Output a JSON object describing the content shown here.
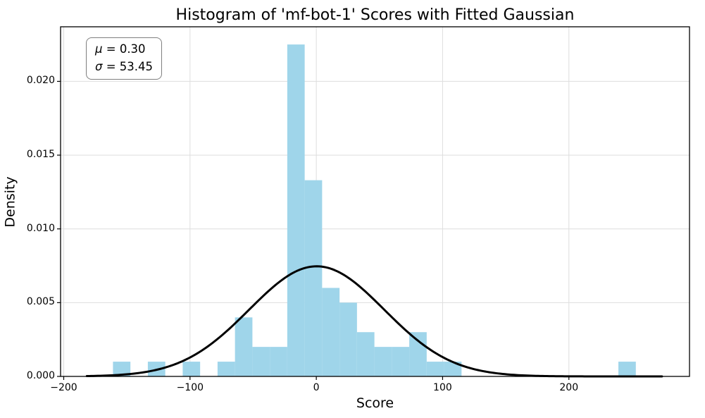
{
  "figure": {
    "title": "Histogram of 'mf-bot-1' Scores with Fitted Gaussian",
    "xlabel": "Score",
    "ylabel": "Density"
  },
  "annotation": {
    "lines": [
      {
        "symbol": "μ",
        "rest": " = 0.30"
      },
      {
        "symbol": "σ",
        "rest": " = 53.45"
      }
    ]
  },
  "chart_data": {
    "type": "bar",
    "subtype": "histogram_with_gaussian_fit",
    "title": "Histogram of 'mf-bot-1' Scores with Fitted Gaussian",
    "xlabel": "Score",
    "ylabel": "Density",
    "xlim": [
      -202.5,
      295.5
    ],
    "ylim": [
      0,
      0.0237
    ],
    "grid": true,
    "xticks": {
      "values": [
        -200,
        -100,
        0,
        100,
        200
      ],
      "labels": [
        "−200",
        "−100",
        "0",
        "100",
        "200"
      ]
    },
    "yticks": {
      "values": [
        0,
        0.005,
        0.01,
        0.015,
        0.02
      ],
      "labels": [
        "0.000",
        "0.005",
        "0.010",
        "0.015",
        "0.020"
      ]
    },
    "bins": {
      "start": -161.0,
      "width": 13.8,
      "densities": [
        0.001,
        0,
        0.001,
        0,
        0.001,
        0,
        0.001,
        0.004,
        0.002,
        0.002,
        0.0225,
        0.0133,
        0.006,
        0.005,
        0.003,
        0.002,
        0.002,
        0.003,
        0.001,
        0.001,
        0,
        0,
        0,
        0,
        0,
        0,
        0,
        0,
        0,
        0.001
      ]
    },
    "fit": {
      "mu": 0.3,
      "sigma": 53.45,
      "peak_density": 0.007464,
      "x_range": [
        -181.7,
        273.7
      ]
    },
    "colors": {
      "bar": "#9fd5ea",
      "curve": "#000000",
      "grid": "#dedede",
      "spine": "#000000",
      "tick": "#000000"
    }
  }
}
